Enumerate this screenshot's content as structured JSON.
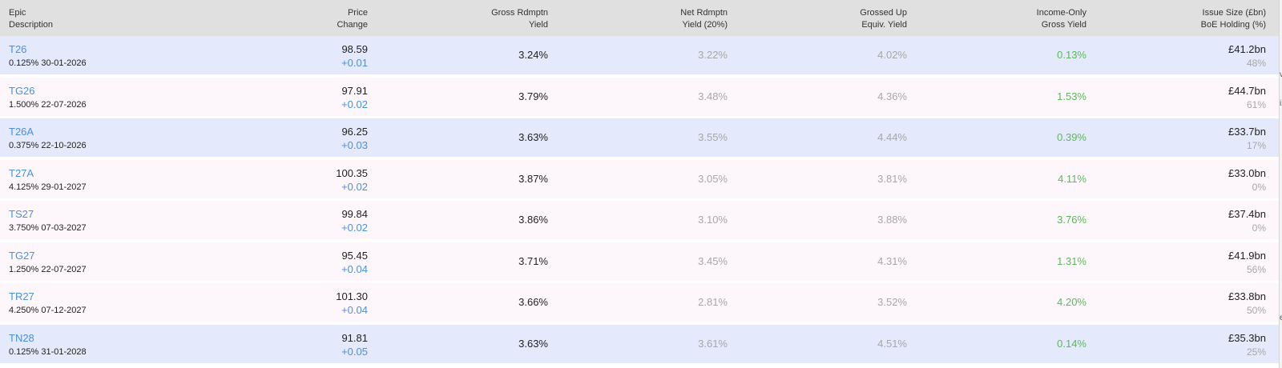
{
  "header": {
    "col_epic": [
      "Epic",
      "Description"
    ],
    "col_price": [
      "Price",
      "Change"
    ],
    "col_gross": [
      "Gross Rdmptn",
      "Yield"
    ],
    "col_net": [
      "Net Rdmptn",
      "Yield (20%)"
    ],
    "col_grossed": [
      "Grossed Up",
      "Equiv. Yield"
    ],
    "col_income": [
      "Income-Only",
      "Gross Yield"
    ],
    "col_issue": [
      "Issue Size (£bn)",
      "BoE Holding (%)"
    ]
  },
  "rows": [
    {
      "epic": "T26",
      "desc": "0.125% 30-01-2026",
      "price": "98.59",
      "change": "+0.01",
      "gross": "3.24%",
      "net": "3.22%",
      "grossed": "4.02%",
      "income": "0.13%",
      "issue": "£41.2bn",
      "boe": "48%",
      "style": "blue"
    },
    {
      "epic": "TG26",
      "desc": "1.500% 22-07-2026",
      "price": "97.91",
      "change": "+0.02",
      "gross": "3.79%",
      "net": "3.48%",
      "grossed": "4.36%",
      "income": "1.53%",
      "issue": "£44.7bn",
      "boe": "61%",
      "style": "pink"
    },
    {
      "epic": "T26A",
      "desc": "0.375% 22-10-2026",
      "price": "96.25",
      "change": "+0.03",
      "gross": "3.63%",
      "net": "3.55%",
      "grossed": "4.44%",
      "income": "0.39%",
      "issue": "£33.7bn",
      "boe": "17%",
      "style": "blue"
    },
    {
      "epic": "T27A",
      "desc": "4.125% 29-01-2027",
      "price": "100.35",
      "change": "+0.02",
      "gross": "3.87%",
      "net": "3.05%",
      "grossed": "3.81%",
      "income": "4.11%",
      "issue": "£33.0bn",
      "boe": "0%",
      "style": "pink"
    },
    {
      "epic": "TS27",
      "desc": "3.750% 07-03-2027",
      "price": "99.84",
      "change": "+0.02",
      "gross": "3.86%",
      "net": "3.10%",
      "grossed": "3.88%",
      "income": "3.76%",
      "issue": "£37.4bn",
      "boe": "0%",
      "style": "pink"
    },
    {
      "epic": "TG27",
      "desc": "1.250% 22-07-2027",
      "price": "95.45",
      "change": "+0.04",
      "gross": "3.71%",
      "net": "3.45%",
      "grossed": "4.31%",
      "income": "1.31%",
      "issue": "£41.9bn",
      "boe": "56%",
      "style": "pink"
    },
    {
      "epic": "TR27",
      "desc": "4.250% 07-12-2027",
      "price": "101.30",
      "change": "+0.04",
      "gross": "3.66%",
      "net": "2.81%",
      "grossed": "3.52%",
      "income": "4.20%",
      "issue": "£33.8bn",
      "boe": "50%",
      "style": "pink"
    },
    {
      "epic": "TN28",
      "desc": "0.125% 31-01-2028",
      "price": "91.81",
      "change": "+0.05",
      "gross": "3.63%",
      "net": "3.61%",
      "grossed": "4.51%",
      "income": "0.14%",
      "issue": "£35.3bn",
      "boe": "25%",
      "style": "blue"
    }
  ],
  "edge_glyphs": [
    "v",
    "iz",
    "e"
  ]
}
